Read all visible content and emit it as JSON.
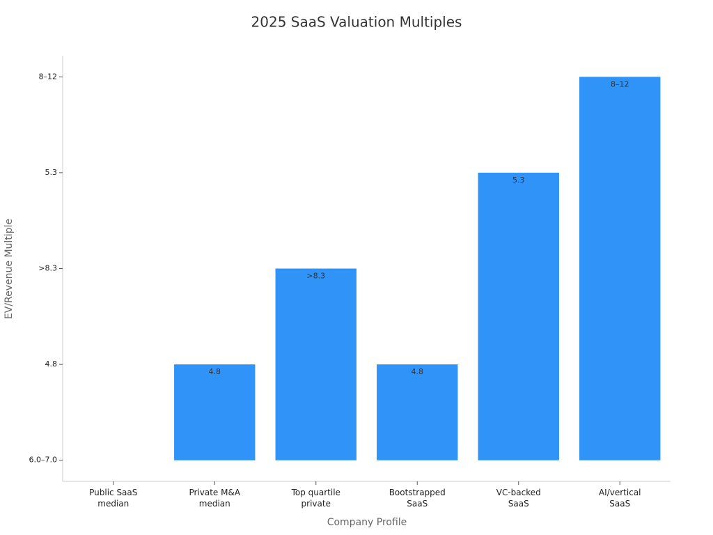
{
  "chart_data": {
    "type": "bar",
    "title": "2025 SaaS Valuation Multiples",
    "xlabel": "Company Profile",
    "ylabel": "EV/Revenue Multiple",
    "categories": [
      "Public SaaS median",
      "Private M&A median",
      "Top quartile private",
      "Bootstrapped SaaS",
      "VC-backed SaaS",
      "AI/vertical SaaS"
    ],
    "values": [
      0,
      1,
      2,
      1,
      3,
      4
    ],
    "value_labels": [
      null,
      "4.8",
      ">8.3",
      "4.8",
      "5.3",
      "8–12"
    ],
    "color": "#2f93f7",
    "ylim": [
      -0.22,
      4.22
    ],
    "yticks": [
      {
        "value": 0,
        "label": "6.0–7.0"
      },
      {
        "value": 1,
        "label": "4.8"
      },
      {
        "value": 2,
        "label": ">8.3"
      },
      {
        "value": 3,
        "label": "5.3"
      },
      {
        "value": 4,
        "label": "8–12"
      }
    ],
    "grid": false
  }
}
